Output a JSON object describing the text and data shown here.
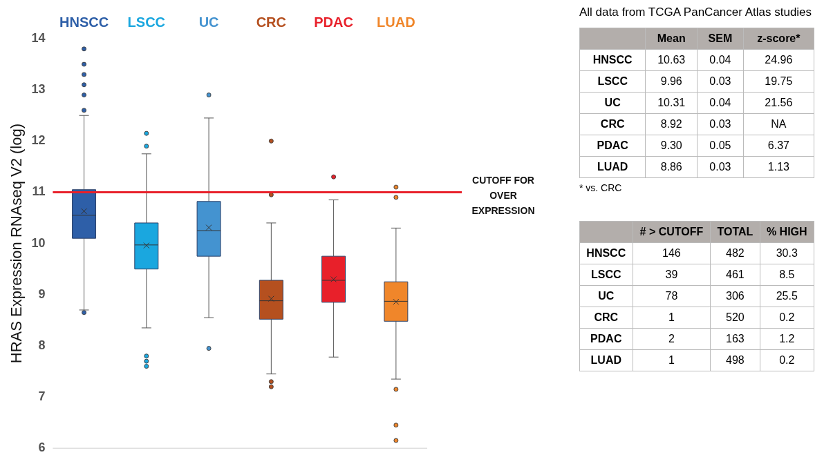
{
  "chart_data": [
    {
      "type": "box",
      "ylabel": "HRAS Expression RNAseq V2 (log)",
      "categories": [
        "HNSCC",
        "LSCC",
        "UC",
        "CRC",
        "PDAC",
        "LUAD"
      ],
      "colors": [
        "#2e5fa8",
        "#1aa7df",
        "#4493d0",
        "#b5501f",
        "#e8202a",
        "#f0862a"
      ],
      "ylim": [
        6,
        14
      ],
      "yticks": [
        6,
        7,
        8,
        9,
        10,
        11,
        12,
        13,
        14
      ],
      "grid": false,
      "legend": false,
      "boxes": [
        {
          "low": 8.7,
          "q1": 10.1,
          "median": 10.55,
          "q3": 11.05,
          "high": 12.5,
          "mean": 10.63,
          "outliers": [
            12.6,
            12.9,
            13.1,
            13.3,
            13.5,
            13.8,
            8.65
          ]
        },
        {
          "low": 8.35,
          "q1": 9.5,
          "median": 9.97,
          "q3": 10.4,
          "high": 11.75,
          "mean": 9.96,
          "outliers": [
            11.9,
            12.15,
            7.8,
            7.7,
            7.6
          ]
        },
        {
          "low": 8.55,
          "q1": 9.75,
          "median": 10.25,
          "q3": 10.82,
          "high": 12.45,
          "mean": 10.31,
          "outliers": [
            12.9,
            7.95
          ]
        },
        {
          "low": 7.45,
          "q1": 8.52,
          "median": 8.88,
          "q3": 9.28,
          "high": 10.4,
          "mean": 8.92,
          "outliers": [
            12.0,
            10.95,
            7.3,
            7.2
          ]
        },
        {
          "low": 7.78,
          "q1": 8.85,
          "median": 9.28,
          "q3": 9.75,
          "high": 10.85,
          "mean": 9.3,
          "outliers": [
            11.3
          ]
        },
        {
          "low": 7.35,
          "q1": 8.48,
          "median": 8.87,
          "q3": 9.25,
          "high": 10.3,
          "mean": 8.86,
          "outliers": [
            10.9,
            11.1,
            7.15,
            6.45,
            6.15
          ]
        }
      ],
      "ref_lines": [
        {
          "axis": "y",
          "value": 11,
          "label": "CUTOFF FOR OVER EXPRESSION",
          "color": "#e8202a"
        }
      ],
      "annotations": [
        "All data from TCGA PanCancer Atlas studies"
      ]
    },
    {
      "type": "other",
      "categories": [
        "Mean",
        "SEM",
        "z-score*"
      ],
      "y_categories": [
        "HNSCC",
        "LSCC",
        "UC",
        "CRC",
        "PDAC",
        "LUAD"
      ],
      "cell_labels": [
        [
          "10.63",
          "0.04",
          "24.96"
        ],
        [
          "9.96",
          "0.03",
          "19.75"
        ],
        [
          "10.31",
          "0.04",
          "21.56"
        ],
        [
          "8.92",
          "0.03",
          "NA"
        ],
        [
          "9.30",
          "0.05",
          "6.37"
        ],
        [
          "8.86",
          "0.03",
          "1.13"
        ]
      ],
      "annotations": [
        "* vs. CRC"
      ]
    },
    {
      "type": "other",
      "categories": [
        "# > CUTOFF",
        "TOTAL",
        "% HIGH"
      ],
      "y_categories": [
        "HNSCC",
        "LSCC",
        "UC",
        "CRC",
        "PDAC",
        "LUAD"
      ],
      "cell_labels": [
        [
          "146",
          "482",
          "30.3"
        ],
        [
          "39",
          "461",
          "8.5"
        ],
        [
          "78",
          "306",
          "25.5"
        ],
        [
          "1",
          "520",
          "0.2"
        ],
        [
          "2",
          "163",
          "1.2"
        ],
        [
          "1",
          "498",
          "0.2"
        ]
      ]
    }
  ]
}
